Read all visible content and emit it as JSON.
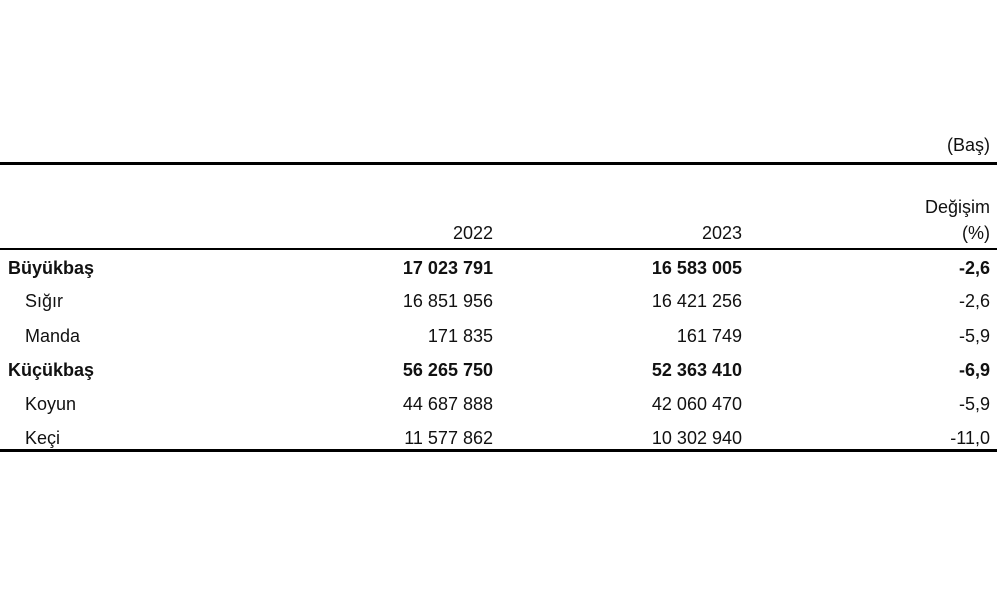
{
  "unit": "(Baş)",
  "table": {
    "header": [
      "2022",
      "2023",
      [
        "Değişim",
        "(%)"
      ]
    ],
    "rows": [
      {
        "label": "Büyükbaş",
        "bold": true,
        "cells": [
          "17 023 791",
          "16 583 005",
          "-2,6"
        ]
      },
      {
        "label": "Sığır",
        "bold": false,
        "cells": [
          "16 851 956",
          "16 421 256",
          "-2,6"
        ]
      },
      {
        "label": "Manda",
        "bold": false,
        "cells": [
          "171 835",
          "161 749",
          "-5,9"
        ]
      },
      {
        "label": "Küçükbaş",
        "bold": true,
        "cells": [
          "56 265 750",
          "52 363 410",
          "-6,9"
        ]
      },
      {
        "label": "Koyun",
        "bold": false,
        "cells": [
          "44 687 888",
          "42 060 470",
          "-5,9"
        ]
      },
      {
        "label": "Keçi",
        "bold": false,
        "cells": [
          "11 577 862",
          "10 302 940",
          "-11,0"
        ]
      }
    ]
  }
}
